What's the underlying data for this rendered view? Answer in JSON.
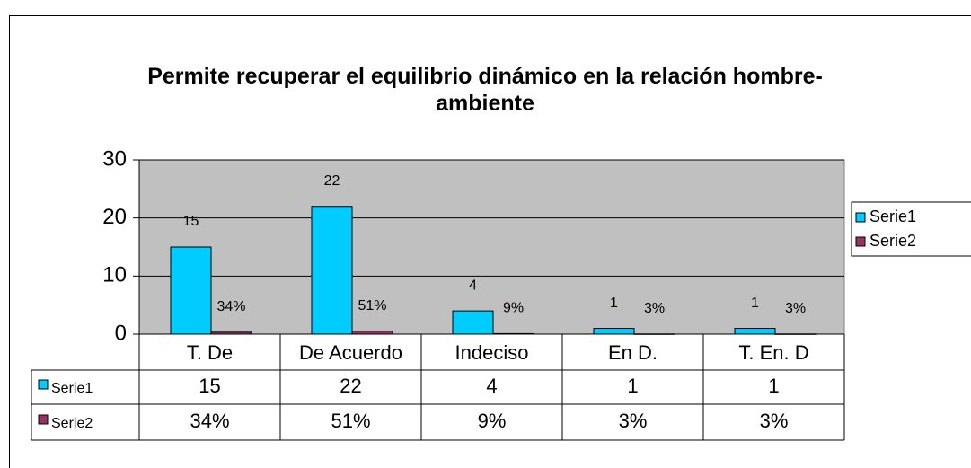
{
  "chart_data": {
    "type": "bar",
    "title": "Permite recuperar el equilibrio dinámico en la relación hombre- ambiente",
    "categories": [
      "T. De",
      "De Acuerdo",
      "Indeciso",
      "En D.",
      "T. En. D"
    ],
    "series": [
      {
        "name": "Serie1",
        "color": "#00ccff",
        "values": [
          15,
          22,
          4,
          1,
          1
        ]
      },
      {
        "name": "Serie2",
        "color": "#993366",
        "values": [
          0.34,
          0.51,
          0.09,
          0.03,
          0.03
        ],
        "value_labels": [
          "34%",
          "51%",
          "9%",
          "3%",
          "3%"
        ]
      }
    ],
    "ylim": [
      0,
      30
    ],
    "yticks": [
      0,
      10,
      20,
      30
    ],
    "grid": true,
    "legend": "right",
    "data_table": true
  }
}
